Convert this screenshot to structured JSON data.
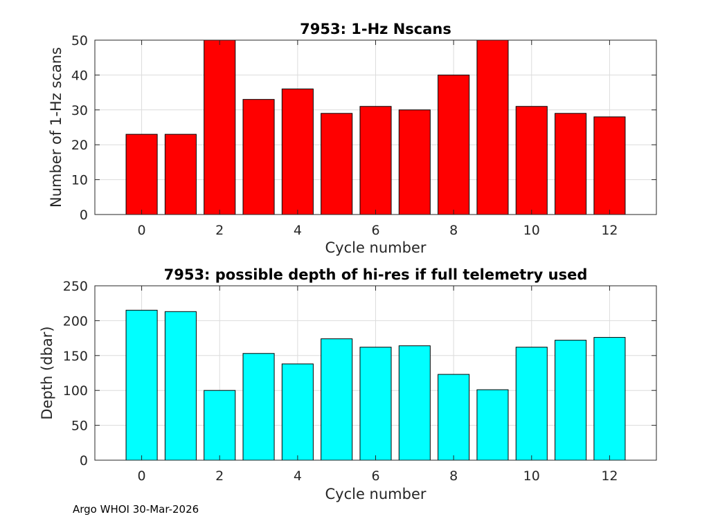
{
  "chart_data": [
    {
      "type": "bar",
      "title": "7953: 1-Hz Nscans",
      "xlabel": "Cycle number",
      "ylabel": "Number of 1-Hz scans",
      "x": [
        0,
        1,
        2,
        3,
        4,
        5,
        6,
        7,
        8,
        9,
        10,
        11,
        12
      ],
      "values": [
        23,
        23,
        50,
        33,
        36,
        29,
        31,
        30,
        40,
        50,
        31,
        29,
        28
      ],
      "xlim": [
        -1.2,
        13.2
      ],
      "ylim": [
        0,
        50
      ],
      "xticks": [
        0,
        2,
        4,
        6,
        8,
        10,
        12
      ],
      "yticks": [
        0,
        10,
        20,
        30,
        40,
        50
      ],
      "bar_color": "#ff0000",
      "grid": true
    },
    {
      "type": "bar",
      "title": "7953: possible depth of hi-res if full telemetry used",
      "xlabel": "Cycle number",
      "ylabel": "Depth (dbar)",
      "x": [
        0,
        1,
        2,
        3,
        4,
        5,
        6,
        7,
        8,
        9,
        10,
        11,
        12
      ],
      "values": [
        215,
        213,
        100,
        153,
        138,
        174,
        162,
        164,
        123,
        101,
        162,
        172,
        176
      ],
      "xlim": [
        -1.2,
        13.2
      ],
      "ylim": [
        0,
        250
      ],
      "xticks": [
        0,
        2,
        4,
        6,
        8,
        10,
        12
      ],
      "yticks": [
        0,
        50,
        100,
        150,
        200,
        250
      ],
      "bar_color": "#00ffff",
      "grid": true
    }
  ],
  "footer": "Argo WHOI 30-Mar-2026"
}
